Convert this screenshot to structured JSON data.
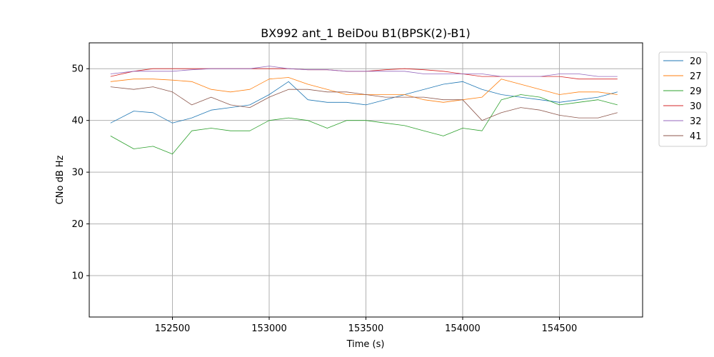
{
  "chart_data": {
    "type": "line",
    "title": "BX992 ant_1 BeiDou B1(BPSK(2)-B1)",
    "xlabel": "Time (s)",
    "ylabel": "CNo dB Hz",
    "xlim": [
      152070,
      154930
    ],
    "ylim": [
      2,
      55
    ],
    "xticks": [
      152500,
      153000,
      153500,
      154000,
      154500
    ],
    "yticks": [
      10,
      20,
      30,
      40,
      50
    ],
    "grid": true,
    "legend_position": "outside-right-top",
    "x": [
      152180,
      152300,
      152400,
      152500,
      152600,
      152700,
      152800,
      152900,
      153000,
      153100,
      153200,
      153300,
      153400,
      153500,
      153600,
      153700,
      153800,
      153900,
      154000,
      154100,
      154200,
      154300,
      154400,
      154500,
      154600,
      154700,
      154800
    ],
    "series": [
      {
        "name": "20",
        "color": "#1f77b4",
        "values": [
          39.5,
          41.8,
          41.5,
          39.5,
          40.5,
          42,
          42.5,
          43,
          45,
          47.5,
          44,
          43.5,
          43.5,
          43,
          44,
          45,
          46,
          47,
          47.5,
          46,
          45,
          44.5,
          44,
          43.5,
          44,
          44.5,
          45.5
        ]
      },
      {
        "name": "27",
        "color": "#ff7f0e",
        "values": [
          47.5,
          48,
          48,
          47.8,
          47.5,
          46,
          45.5,
          46,
          48,
          48.3,
          47,
          46,
          45,
          45,
          45,
          45,
          44,
          43.5,
          44,
          44.5,
          48,
          47,
          46,
          45,
          45.5,
          45.5,
          45
        ]
      },
      {
        "name": "29",
        "color": "#2ca02c",
        "values": [
          37,
          34.5,
          35,
          33.5,
          38,
          38.5,
          38,
          38,
          40,
          40.5,
          40,
          38.5,
          40,
          40,
          39.5,
          39,
          38,
          37,
          38.5,
          38,
          44,
          45,
          44.5,
          43,
          43.5,
          44,
          43
        ]
      },
      {
        "name": "30",
        "color": "#d62728",
        "values": [
          48.5,
          49.5,
          50,
          50,
          50,
          50,
          50,
          50,
          50,
          50,
          49.8,
          49.8,
          49.5,
          49.5,
          49.8,
          50,
          49.8,
          49.5,
          49,
          48.5,
          48.5,
          48.5,
          48.5,
          48.5,
          48,
          48,
          48
        ]
      },
      {
        "name": "32",
        "color": "#9467bd",
        "values": [
          49,
          49.5,
          49.5,
          49.5,
          49.8,
          50,
          50,
          50,
          50.5,
          50,
          49.8,
          49.8,
          49.5,
          49.5,
          49.5,
          49.5,
          49,
          49,
          49,
          49,
          48.5,
          48.5,
          48.5,
          49,
          49,
          48.5,
          48.5
        ]
      },
      {
        "name": "41",
        "color": "#8c564b",
        "values": [
          46.5,
          46,
          46.5,
          45.5,
          43,
          44.5,
          43,
          42.5,
          44.5,
          46,
          46,
          45.5,
          45.5,
          45,
          44.5,
          44.5,
          44.5,
          44,
          44,
          40,
          41.5,
          42.5,
          42,
          41,
          40.5,
          40.5,
          41.5
        ]
      }
    ]
  }
}
